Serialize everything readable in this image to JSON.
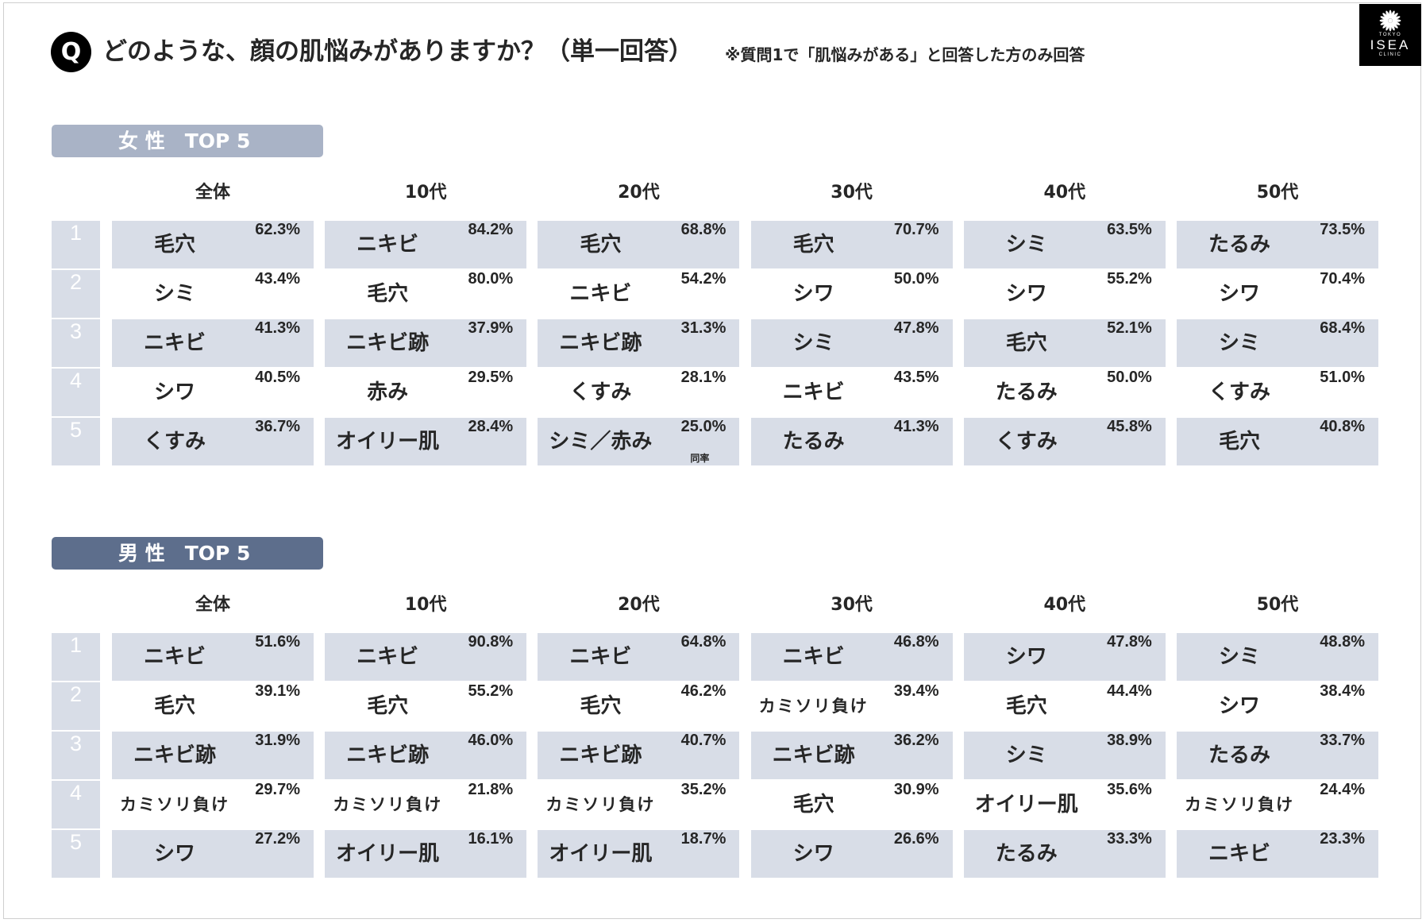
{
  "question": {
    "badge": "Q",
    "title": "どのような、顔の肌悩みがありますか？（単一回答）",
    "note": "※質問1で「肌悩みがある」と回答した方のみ回答"
  },
  "logo": {
    "icon": "sunburst-icon",
    "top_text": "TOKYO",
    "name": "ISEA",
    "bottom_text": "CLINIC"
  },
  "colors": {
    "text": "#262626",
    "female_bar": "#a9b3c6",
    "male_bar": "#5d6e8c",
    "row_fill": "#d8dde7",
    "rank_text": "#ffffff",
    "logo_bg": "#000000"
  },
  "chart_data": {
    "type": "table",
    "ranks": [
      "1",
      "2",
      "3",
      "4",
      "5"
    ],
    "sections": [
      {
        "title": "女 性　TOP 5",
        "groups": [
          {
            "column": "全体",
            "items": [
              {
                "name": "毛穴",
                "value": "62.3%"
              },
              {
                "name": "シミ",
                "value": "43.4%"
              },
              {
                "name": "ニキビ",
                "value": "41.3%"
              },
              {
                "name": "シワ",
                "value": "40.5%"
              },
              {
                "name": "くすみ",
                "value": "36.7%"
              }
            ]
          },
          {
            "column": "10代",
            "items": [
              {
                "name": "ニキビ",
                "value": "84.2%"
              },
              {
                "name": "毛穴",
                "value": "80.0%"
              },
              {
                "name": "ニキビ跡",
                "value": "37.9%"
              },
              {
                "name": "赤み",
                "value": "29.5%"
              },
              {
                "name": "オイリー肌",
                "value": "28.4%"
              }
            ]
          },
          {
            "column": "20代",
            "items": [
              {
                "name": "毛穴",
                "value": "68.8%"
              },
              {
                "name": "ニキビ",
                "value": "54.2%"
              },
              {
                "name": "ニキビ跡",
                "value": "31.3%"
              },
              {
                "name": "くすみ",
                "value": "28.1%"
              },
              {
                "name": "シミ／赤み",
                "value": "25.0%",
                "note": "同率"
              }
            ]
          },
          {
            "column": "30代",
            "items": [
              {
                "name": "毛穴",
                "value": "70.7%"
              },
              {
                "name": "シワ",
                "value": "50.0%"
              },
              {
                "name": "シミ",
                "value": "47.8%"
              },
              {
                "name": "ニキビ",
                "value": "43.5%"
              },
              {
                "name": "たるみ",
                "value": "41.3%"
              }
            ]
          },
          {
            "column": "40代",
            "items": [
              {
                "name": "シミ",
                "value": "63.5%"
              },
              {
                "name": "シワ",
                "value": "55.2%"
              },
              {
                "name": "毛穴",
                "value": "52.1%"
              },
              {
                "name": "たるみ",
                "value": "50.0%"
              },
              {
                "name": "くすみ",
                "value": "45.8%"
              }
            ]
          },
          {
            "column": "50代",
            "items": [
              {
                "name": "たるみ",
                "value": "73.5%"
              },
              {
                "name": "シワ",
                "value": "70.4%"
              },
              {
                "name": "シミ",
                "value": "68.4%"
              },
              {
                "name": "くすみ",
                "value": "51.0%"
              },
              {
                "name": "毛穴",
                "value": "40.8%"
              }
            ]
          }
        ]
      },
      {
        "title": "男 性　TOP 5",
        "groups": [
          {
            "column": "全体",
            "items": [
              {
                "name": "ニキビ",
                "value": "51.6%"
              },
              {
                "name": "毛穴",
                "value": "39.1%"
              },
              {
                "name": "ニキビ跡",
                "value": "31.9%"
              },
              {
                "name": "カミソリ負け",
                "value": "29.7%"
              },
              {
                "name": "シワ",
                "value": "27.2%"
              }
            ]
          },
          {
            "column": "10代",
            "items": [
              {
                "name": "ニキビ",
                "value": "90.8%"
              },
              {
                "name": "毛穴",
                "value": "55.2%"
              },
              {
                "name": "ニキビ跡",
                "value": "46.0%"
              },
              {
                "name": "カミソリ負け",
                "value": "21.8%"
              },
              {
                "name": "オイリー肌",
                "value": "16.1%"
              }
            ]
          },
          {
            "column": "20代",
            "items": [
              {
                "name": "ニキビ",
                "value": "64.8%"
              },
              {
                "name": "毛穴",
                "value": "46.2%"
              },
              {
                "name": "ニキビ跡",
                "value": "40.7%"
              },
              {
                "name": "カミソリ負け",
                "value": "35.2%"
              },
              {
                "name": "オイリー肌",
                "value": "18.7%"
              }
            ]
          },
          {
            "column": "30代",
            "items": [
              {
                "name": "ニキビ",
                "value": "46.8%"
              },
              {
                "name": "カミソリ負け",
                "value": "39.4%"
              },
              {
                "name": "ニキビ跡",
                "value": "36.2%"
              },
              {
                "name": "毛穴",
                "value": "30.9%"
              },
              {
                "name": "シワ",
                "value": "26.6%"
              }
            ]
          },
          {
            "column": "40代",
            "items": [
              {
                "name": "シワ",
                "value": "47.8%"
              },
              {
                "name": "毛穴",
                "value": "44.4%"
              },
              {
                "name": "シミ",
                "value": "38.9%"
              },
              {
                "name": "オイリー肌",
                "value": "35.6%"
              },
              {
                "name": "たるみ",
                "value": "33.3%"
              }
            ]
          },
          {
            "column": "50代",
            "items": [
              {
                "name": "シミ",
                "value": "48.8%"
              },
              {
                "name": "シワ",
                "value": "38.4%"
              },
              {
                "name": "たるみ",
                "value": "33.7%"
              },
              {
                "name": "カミソリ負け",
                "value": "24.4%"
              },
              {
                "name": "ニキビ",
                "value": "23.3%"
              }
            ]
          }
        ]
      }
    ]
  }
}
